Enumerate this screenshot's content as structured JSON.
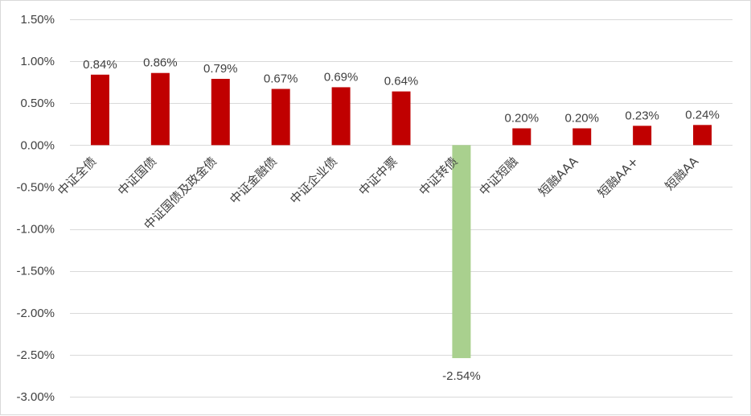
{
  "chart_data": {
    "type": "bar",
    "title": "",
    "xlabel": "",
    "ylabel": "",
    "ylim": [
      -3.0,
      1.5
    ],
    "y_ticks": [
      1.5,
      1.0,
      0.5,
      0.0,
      -0.5,
      -1.0,
      -1.5,
      -2.0,
      -2.5,
      -3.0
    ],
    "y_tick_labels": [
      "1.50%",
      "1.00%",
      "0.50%",
      "0.00%",
      "-0.50%",
      "-1.00%",
      "-1.50%",
      "-2.00%",
      "-2.50%",
      "-3.00%"
    ],
    "grid": true,
    "legend": "none",
    "categories": [
      "中证全债",
      "中证国债",
      "中证国债及政金债",
      "中证金融债",
      "中证企业债",
      "中证中票",
      "中证转债",
      "中证短融",
      "短融AAA",
      "短融AA+",
      "短融AA"
    ],
    "values": [
      0.84,
      0.86,
      0.79,
      0.67,
      0.69,
      0.64,
      -2.54,
      0.2,
      0.2,
      0.23,
      0.24
    ],
    "data_labels": [
      "0.84%",
      "0.86%",
      "0.79%",
      "0.67%",
      "0.69%",
      "0.64%",
      "-2.54%",
      "0.20%",
      "0.20%",
      "0.23%",
      "0.24%"
    ],
    "colors": {
      "positive": "#c00000",
      "negative": "#a9d08e",
      "grid": "#d9d9d9",
      "text": "#404040"
    }
  }
}
